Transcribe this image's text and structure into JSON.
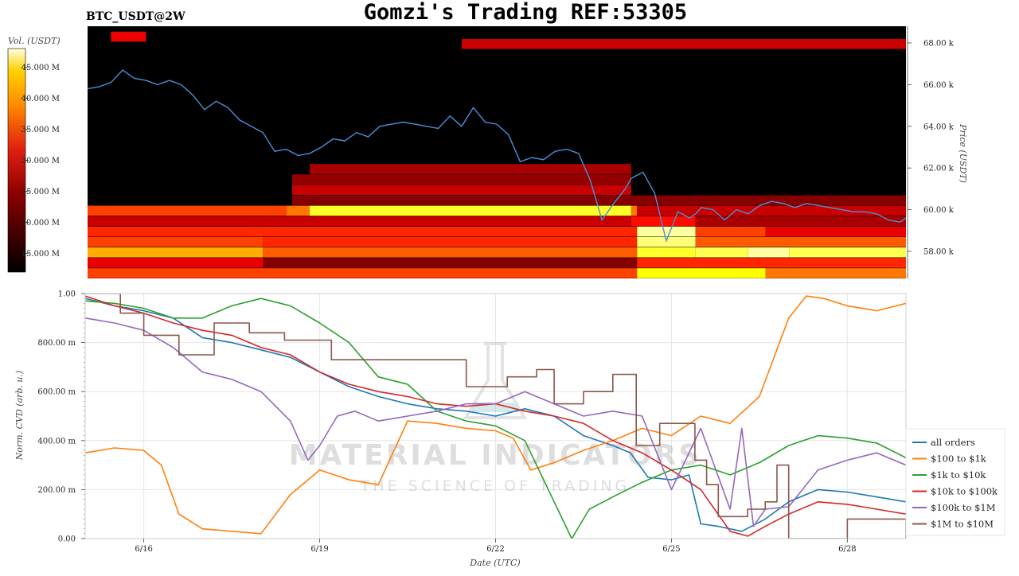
{
  "header": {
    "symbol": "BTC_USDT@2W",
    "title": "Gomzi's Trading REF:53305"
  },
  "watermark": {
    "line1": "MATERIAL INDICATORS",
    "line2": "THE SCIENCE OF TRADING"
  },
  "colors": {
    "background": "#000000",
    "price_line": "#4a90d9"
  },
  "chart_data": [
    {
      "type": "heatmap",
      "title": "",
      "colorbar": {
        "label": "Vol. (USDT)",
        "ticks": [
          "45.000 M",
          "40.000 M",
          "35.000 M",
          "30.000 M",
          "25.000 M",
          "20.000 M",
          "15.000 M"
        ],
        "tick_values": [
          45,
          40,
          35,
          30,
          25,
          20,
          15
        ],
        "range": [
          12,
          48
        ],
        "colormap": "hot"
      },
      "y_axis": {
        "label": "Price (USDT)",
        "ticks": [
          "68.00 k",
          "66.00 k",
          "64.00 k",
          "62.00 k",
          "60.00 k",
          "58.00 k"
        ],
        "tick_values": [
          68000,
          66000,
          64000,
          62000,
          60000,
          58000
        ],
        "range": [
          56700,
          68800
        ]
      },
      "x_range": [
        0,
        14
      ],
      "bands": [
        {
          "price": 59950,
          "segments": [
            [
              0,
              3.4,
              0.5
            ],
            [
              3.4,
              3.8,
              0.6
            ],
            [
              3.8,
              9.3,
              0.8
            ],
            [
              9.3,
              9.4,
              0.6
            ],
            [
              9.4,
              14,
              0.3
            ]
          ]
        },
        {
          "price": 59450,
          "segments": [
            [
              0,
              9.3,
              0.3
            ],
            [
              9.3,
              10.4,
              0.4
            ],
            [
              10.4,
              14,
              0.25
            ]
          ]
        },
        {
          "price": 58950,
          "segments": [
            [
              0,
              9.4,
              0.45
            ],
            [
              9.4,
              10.4,
              0.95
            ],
            [
              10.4,
              11.6,
              0.5
            ],
            [
              11.6,
              14,
              0.35
            ]
          ]
        },
        {
          "price": 58450,
          "segments": [
            [
              0,
              3.0,
              0.5
            ],
            [
              3.0,
              9.4,
              0.45
            ],
            [
              9.4,
              10.4,
              0.9
            ],
            [
              10.4,
              14,
              0.55
            ]
          ]
        },
        {
          "price": 57950,
          "segments": [
            [
              0,
              3.0,
              0.7
            ],
            [
              3.0,
              9.4,
              0.55
            ],
            [
              9.4,
              10.4,
              0.8
            ],
            [
              10.4,
              11.3,
              0.85
            ],
            [
              11.3,
              12.0,
              0.95
            ],
            [
              12.0,
              14,
              0.85
            ]
          ]
        },
        {
          "price": 57450,
          "segments": [
            [
              0,
              3.0,
              0.35
            ],
            [
              3.0,
              9.4,
              0.2
            ],
            [
              9.4,
              14,
              0.45
            ]
          ]
        },
        {
          "price": 56950,
          "segments": [
            [
              0,
              9.4,
              0.5
            ],
            [
              9.4,
              11.6,
              0.75
            ],
            [
              11.6,
              14,
              0.6
            ]
          ]
        },
        {
          "price": 61950,
          "segments": [
            [
              3.8,
              9.3,
              0.25
            ]
          ]
        },
        {
          "price": 61450,
          "segments": [
            [
              3.5,
              9.3,
              0.22
            ]
          ]
        },
        {
          "price": 60950,
          "segments": [
            [
              3.5,
              9.3,
              0.3
            ]
          ]
        },
        {
          "price": 60450,
          "segments": [
            [
              3.5,
              14,
              0.2
            ]
          ]
        },
        {
          "price": 67950,
          "segments": [
            [
              6.4,
              14,
              0.3
            ]
          ]
        },
        {
          "price": 68300,
          "segments": [
            [
              0.4,
              1.0,
              0.35
            ]
          ]
        }
      ],
      "series": [
        {
          "type": "line",
          "x": [
            0,
            0.2,
            0.4,
            0.6,
            0.8,
            1.0,
            1.2,
            1.4,
            1.6,
            1.8,
            2.0,
            2.2,
            2.4,
            2.6,
            2.8,
            3.0,
            3.2,
            3.4,
            3.6,
            3.8,
            4.0,
            4.2,
            4.4,
            4.6,
            4.8,
            5.0,
            5.2,
            5.4,
            5.6,
            5.8,
            6.0,
            6.2,
            6.4,
            6.6,
            6.8,
            7.0,
            7.2,
            7.4,
            7.6,
            7.8,
            8.0,
            8.2,
            8.4,
            8.6,
            8.8,
            9.0,
            9.2,
            9.3,
            9.5,
            9.7,
            9.9,
            10.1,
            10.3,
            10.4,
            10.5,
            10.7,
            10.9,
            11.1,
            11.3,
            11.5,
            11.7,
            11.9,
            12.1,
            12.3,
            12.5,
            12.7,
            12.9,
            13.1,
            13.3,
            13.5,
            13.7,
            13.9,
            14
          ],
          "y": [
            65800,
            65900,
            66100,
            66700,
            66300,
            66200,
            66000,
            66200,
            66000,
            65500,
            64800,
            65200,
            64900,
            64300,
            64000,
            63700,
            62800,
            62900,
            62600,
            62700,
            63000,
            63400,
            63300,
            63700,
            63500,
            64000,
            64100,
            64200,
            64100,
            64000,
            63900,
            64500,
            64000,
            64900,
            64200,
            64100,
            63600,
            62300,
            62500,
            62400,
            62800,
            62900,
            62700,
            61400,
            59500,
            60300,
            61000,
            61500,
            61800,
            60800,
            58500,
            59900,
            59600,
            59800,
            60100,
            60000,
            59500,
            60000,
            59800,
            60200,
            60400,
            60300,
            60100,
            60300,
            60200,
            60100,
            60000,
            59900,
            59900,
            59800,
            59500,
            59400,
            59600
          ]
        }
      ]
    },
    {
      "type": "line",
      "title": "",
      "xlabel": "Date (UTC)",
      "ylabel": "Norm. CVD (arb. u.)",
      "ylim": [
        0,
        1
      ],
      "xlim": [
        0,
        14
      ],
      "y_ticks": [
        "0.00",
        "200.00 m",
        "400.00 m",
        "600.00 m",
        "800.00 m",
        "1.00"
      ],
      "y_tick_values": [
        0,
        0.2,
        0.4,
        0.6,
        0.8,
        1.0
      ],
      "x_ticks": [
        "6/16",
        "6/19",
        "6/22",
        "6/25",
        "6/28"
      ],
      "x_tick_values": [
        1,
        4,
        7,
        10,
        13
      ],
      "grid": true,
      "legend_position": "right",
      "series": [
        {
          "name": "all orders",
          "color": "#1f77b4",
          "x": [
            0,
            0.5,
            1.0,
            1.5,
            2.0,
            2.5,
            3.0,
            3.5,
            4.0,
            4.5,
            5.0,
            5.5,
            6.0,
            6.5,
            7.0,
            7.5,
            8.0,
            8.5,
            9.0,
            9.3,
            9.6,
            10.0,
            10.3,
            10.5,
            10.8,
            11.2,
            11.6,
            12.0,
            12.5,
            13.0,
            13.5,
            14.0
          ],
          "y": [
            0.98,
            0.95,
            0.93,
            0.9,
            0.82,
            0.8,
            0.77,
            0.74,
            0.68,
            0.62,
            0.58,
            0.55,
            0.53,
            0.52,
            0.5,
            0.53,
            0.5,
            0.42,
            0.38,
            0.35,
            0.25,
            0.24,
            0.26,
            0.06,
            0.05,
            0.03,
            0.08,
            0.15,
            0.2,
            0.19,
            0.17,
            0.15
          ]
        },
        {
          "name": "$100 to $1k",
          "color": "#ff7f0e",
          "x": [
            0,
            0.5,
            1.0,
            1.3,
            1.6,
            2.0,
            2.5,
            3.0,
            3.5,
            4.0,
            4.5,
            5.0,
            5.5,
            6.0,
            6.5,
            7.0,
            7.3,
            7.6,
            8.0,
            8.5,
            9.0,
            9.5,
            10.0,
            10.5,
            11.0,
            11.5,
            12.0,
            12.3,
            12.6,
            13.0,
            13.5,
            14.0
          ],
          "y": [
            0.35,
            0.37,
            0.36,
            0.3,
            0.1,
            0.04,
            0.03,
            0.02,
            0.18,
            0.28,
            0.24,
            0.22,
            0.48,
            0.47,
            0.45,
            0.44,
            0.41,
            0.28,
            0.31,
            0.36,
            0.4,
            0.45,
            0.42,
            0.5,
            0.47,
            0.58,
            0.9,
            0.99,
            0.98,
            0.95,
            0.93,
            0.96
          ]
        },
        {
          "name": "$1k to $10k",
          "color": "#2ca02c",
          "x": [
            0,
            0.5,
            1.0,
            1.5,
            2.0,
            2.5,
            3.0,
            3.5,
            4.0,
            4.5,
            5.0,
            5.5,
            6.0,
            6.5,
            7.0,
            7.5,
            8.0,
            8.3,
            8.6,
            9.0,
            9.5,
            10.0,
            10.5,
            11.0,
            11.5,
            12.0,
            12.5,
            13.0,
            13.5,
            14.0
          ],
          "y": [
            0.97,
            0.96,
            0.94,
            0.9,
            0.9,
            0.95,
            0.98,
            0.95,
            0.88,
            0.8,
            0.66,
            0.63,
            0.52,
            0.48,
            0.46,
            0.4,
            0.15,
            0.0,
            0.12,
            0.17,
            0.23,
            0.28,
            0.3,
            0.26,
            0.31,
            0.38,
            0.42,
            0.41,
            0.39,
            0.33
          ]
        },
        {
          "name": "$10k to $100k",
          "color": "#d62728",
          "x": [
            0,
            0.5,
            1.0,
            1.5,
            2.0,
            2.5,
            3.0,
            3.5,
            4.0,
            4.5,
            5.0,
            5.5,
            6.0,
            6.5,
            7.0,
            7.5,
            8.0,
            8.5,
            9.0,
            9.5,
            10.0,
            10.5,
            11.0,
            11.3,
            11.6,
            12.0,
            12.5,
            13.0,
            13.5,
            14.0
          ],
          "y": [
            0.99,
            0.95,
            0.92,
            0.88,
            0.85,
            0.83,
            0.78,
            0.75,
            0.68,
            0.63,
            0.6,
            0.58,
            0.55,
            0.54,
            0.55,
            0.52,
            0.5,
            0.47,
            0.4,
            0.35,
            0.28,
            0.2,
            0.03,
            0.01,
            0.05,
            0.1,
            0.15,
            0.14,
            0.12,
            0.1
          ]
        },
        {
          "name": "$100k to $1M",
          "color": "#9467bd",
          "x": [
            0,
            0.5,
            1.0,
            1.5,
            2.0,
            2.5,
            3.0,
            3.5,
            3.8,
            4.0,
            4.3,
            4.6,
            5.0,
            5.5,
            6.0,
            6.5,
            7.0,
            7.5,
            8.0,
            8.5,
            9.0,
            9.5,
            10.0,
            10.5,
            11.0,
            11.2,
            11.4,
            11.6,
            12.0,
            12.5,
            13.0,
            13.5,
            14.0
          ],
          "y": [
            0.9,
            0.88,
            0.85,
            0.78,
            0.68,
            0.65,
            0.6,
            0.48,
            0.32,
            0.38,
            0.5,
            0.52,
            0.48,
            0.5,
            0.52,
            0.55,
            0.55,
            0.6,
            0.55,
            0.5,
            0.52,
            0.5,
            0.2,
            0.45,
            0.12,
            0.45,
            0.05,
            0.12,
            0.13,
            0.28,
            0.32,
            0.35,
            0.3
          ]
        },
        {
          "name": "$1M to $10M",
          "color": "#8c564b",
          "step": true,
          "x": [
            0,
            0.6,
            1.0,
            1.6,
            2.2,
            2.8,
            3.4,
            4.2,
            5.2,
            6.5,
            7.2,
            7.7,
            8.0,
            8.5,
            9.0,
            9.4,
            9.8,
            10.4,
            10.6,
            10.8,
            11.3,
            11.6,
            11.8,
            12.0,
            12.2,
            13.0,
            13.5,
            14.0
          ],
          "y": [
            1.0,
            0.92,
            0.83,
            0.75,
            0.88,
            0.84,
            0.81,
            0.73,
            0.73,
            0.62,
            0.66,
            0.69,
            0.55,
            0.6,
            0.67,
            0.38,
            0.47,
            0.32,
            0.22,
            0.09,
            0.12,
            0.15,
            0.3,
            0.0,
            0.0,
            0.08,
            0.08,
            0.0
          ]
        }
      ]
    }
  ]
}
